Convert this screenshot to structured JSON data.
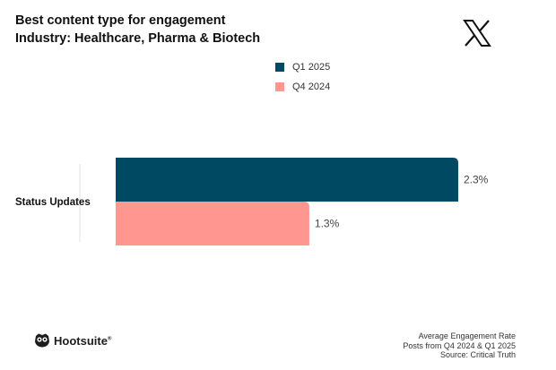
{
  "header": {
    "title": "Best content type for engagement",
    "subtitle": "Industry: Healthcare, Pharma & Biotech",
    "platform_icon": "x-logo-icon"
  },
  "chart_data": {
    "type": "bar",
    "orientation": "horizontal",
    "categories": [
      "Status Updates"
    ],
    "series": [
      {
        "name": "Q1 2025",
        "values": [
          2.3
        ],
        "labels": [
          "2.3%"
        ],
        "color": "#004963"
      },
      {
        "name": "Q4 2024",
        "values": [
          1.3
        ],
        "labels": [
          "1.3%"
        ],
        "color": "#ff9690"
      }
    ],
    "value_unit": "%",
    "xlim": [
      0,
      2.5
    ],
    "grid": false,
    "legend_position": "top-center"
  },
  "footer": {
    "brand": "Hootsuite",
    "brand_mark": "®",
    "logo_icon": "owl-logo-icon",
    "notes": [
      "Average Engagement Rate",
      "Posts from Q4 2024 & Q1 2025",
      "Source: Critical Truth"
    ]
  }
}
